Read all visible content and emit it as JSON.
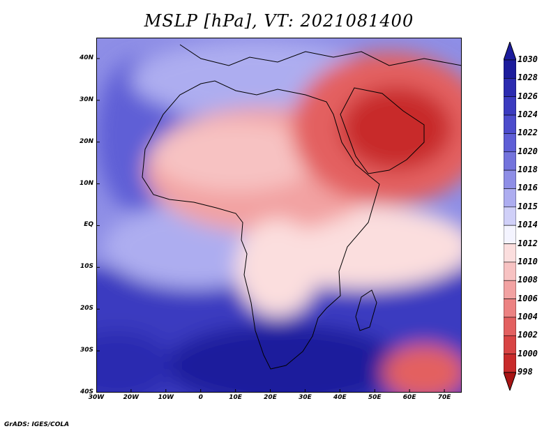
{
  "title": "MSLP [hPa], VT: 2021081400",
  "footer": "GrADS: IGES/COLA",
  "map": {
    "lon_range": [
      -30,
      75
    ],
    "lat_range": [
      -40,
      45
    ],
    "ylabels": [
      "40N",
      "30N",
      "20N",
      "10N",
      "EQ",
      "10S",
      "20S",
      "30S",
      "40S"
    ],
    "ylabel_lats": [
      40,
      30,
      20,
      10,
      0,
      -10,
      -20,
      -30,
      -40
    ],
    "xlabels": [
      "30W",
      "20W",
      "10W",
      "0",
      "10E",
      "20E",
      "30E",
      "40E",
      "50E",
      "60E",
      "70E"
    ],
    "xlabel_lons": [
      -30,
      -20,
      -10,
      0,
      10,
      20,
      30,
      40,
      50,
      60,
      70
    ]
  },
  "colorbar": {
    "labels": [
      "1030",
      "1028",
      "1026",
      "1024",
      "1022",
      "1020",
      "1018",
      "1016",
      "1015",
      "1014",
      "1012",
      "1010",
      "1008",
      "1006",
      "1004",
      "1002",
      "1000",
      "998"
    ],
    "colors": [
      "#1c1c9c",
      "#2b2bb0",
      "#3b3bc0",
      "#4c4ccc",
      "#5e5ed6",
      "#7373dc",
      "#8e8ee6",
      "#adadf0",
      "#d0d0f8",
      "#f4f4ff",
      "#fbdede",
      "#f7c2c2",
      "#f2a2a2",
      "#ec8282",
      "#e36060",
      "#d84444",
      "#c82a2a",
      "#a81414"
    ]
  }
}
